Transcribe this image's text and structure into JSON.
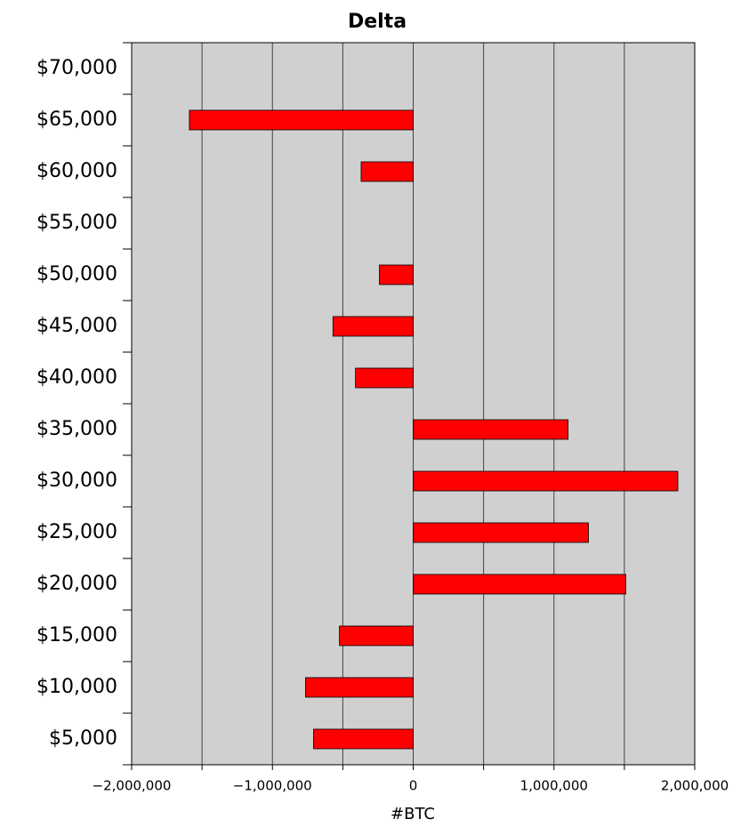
{
  "chart_data": {
    "type": "hbar",
    "title": "Delta",
    "x_label": "#BTC",
    "categories": [
      "$70,000",
      "$65,000",
      "$60,000",
      "$55,000",
      "$50,000",
      "$45,000",
      "$40,000",
      "$35,000",
      "$30,000",
      "$25,000",
      "$20,000",
      "$15,000",
      "$10,000",
      "$5,000"
    ],
    "values": [
      0,
      -1590000,
      -370000,
      0,
      -240000,
      -570000,
      -410000,
      1100000,
      1880000,
      1245000,
      1510000,
      -524000,
      -765000,
      -708000
    ],
    "color": "#ff0000",
    "xlim": [
      -2000000,
      2000000
    ],
    "xticks": [
      {
        "value": -2000000,
        "label": "−2,000,000"
      },
      {
        "value": -1000000,
        "label": "−1,000,000"
      },
      0,
      {
        "value": 1000000,
        "label": "1,000,000"
      },
      {
        "value": 2000000,
        "label": "2,000,000"
      }
    ],
    "xminor_ticks": [
      -1500000,
      -500000,
      500000,
      1500000
    ],
    "grid": true
  }
}
